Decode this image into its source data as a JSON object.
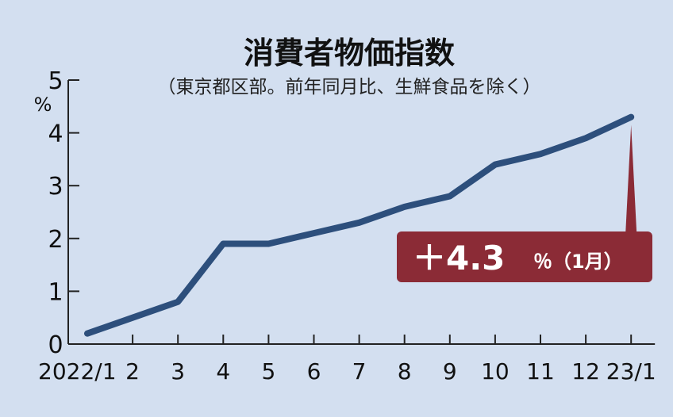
{
  "chart_data": {
    "type": "line",
    "title": "消費者物価指数",
    "subtitle": "（東京都区部。前年同月比、生鮮食品を除く）",
    "ylabel": "%",
    "ylim": [
      0,
      5
    ],
    "yticks": [
      "0",
      "1",
      "2",
      "3",
      "4",
      "5"
    ],
    "categories": [
      "2022/1",
      "2",
      "3",
      "4",
      "5",
      "6",
      "7",
      "8",
      "9",
      "10",
      "11",
      "12",
      "23/1"
    ],
    "values": [
      0.2,
      0.5,
      0.8,
      1.9,
      1.9,
      2.1,
      2.3,
      2.6,
      2.8,
      3.4,
      3.6,
      3.9,
      4.3
    ],
    "line_color": "#2d4f7c",
    "grid": false,
    "callout": {
      "value_text": "＋4.3",
      "unit_text": "％（1月）",
      "color": "#8b2b36"
    }
  }
}
